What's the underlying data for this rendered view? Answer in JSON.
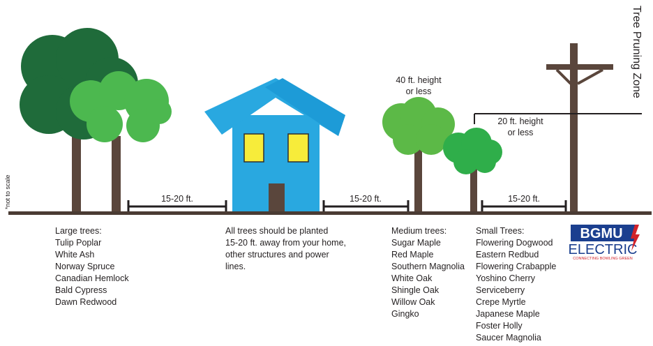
{
  "title": "Tree Pruning Zone",
  "note": "*not to scale",
  "distances": [
    "15-20 ft.",
    "15-20 ft.",
    "15-20 ft."
  ],
  "height_labels": [
    [
      "40 ft. height",
      "or less"
    ],
    [
      "20 ft. height",
      "or less"
    ]
  ],
  "columns": [
    {
      "heading": "Large trees:",
      "items": [
        "Tulip Poplar",
        "White Ash",
        "Norway Spruce",
        "Canadian Hemlock",
        "Bald Cypress",
        "Dawn Redwood"
      ]
    },
    {
      "heading": "All trees should be planted",
      "items": [
        "15-20 ft. away from your home,",
        "other structures and power",
        "lines."
      ]
    },
    {
      "heading": "Medium trees:",
      "items": [
        "Sugar Maple",
        "Red Maple",
        "Southern Magnolia",
        "White Oak",
        "Shingle Oak",
        "Willow Oak",
        "Gingko"
      ]
    },
    {
      "heading": "Small Trees:",
      "items": [
        "Flowering Dogwood",
        "Eastern Redbud",
        "Flowering Crabapple",
        "Yoshino Cherry",
        "Serviceberry",
        "Crepe Myrtle",
        "Japanese Maple",
        "Foster Holly",
        "Saucer Magnolia"
      ]
    }
  ],
  "logo": {
    "name": "BGMU",
    "sub": "ELECTRIC",
    "tagline": "CONNECTING BOWLING GREEN"
  }
}
